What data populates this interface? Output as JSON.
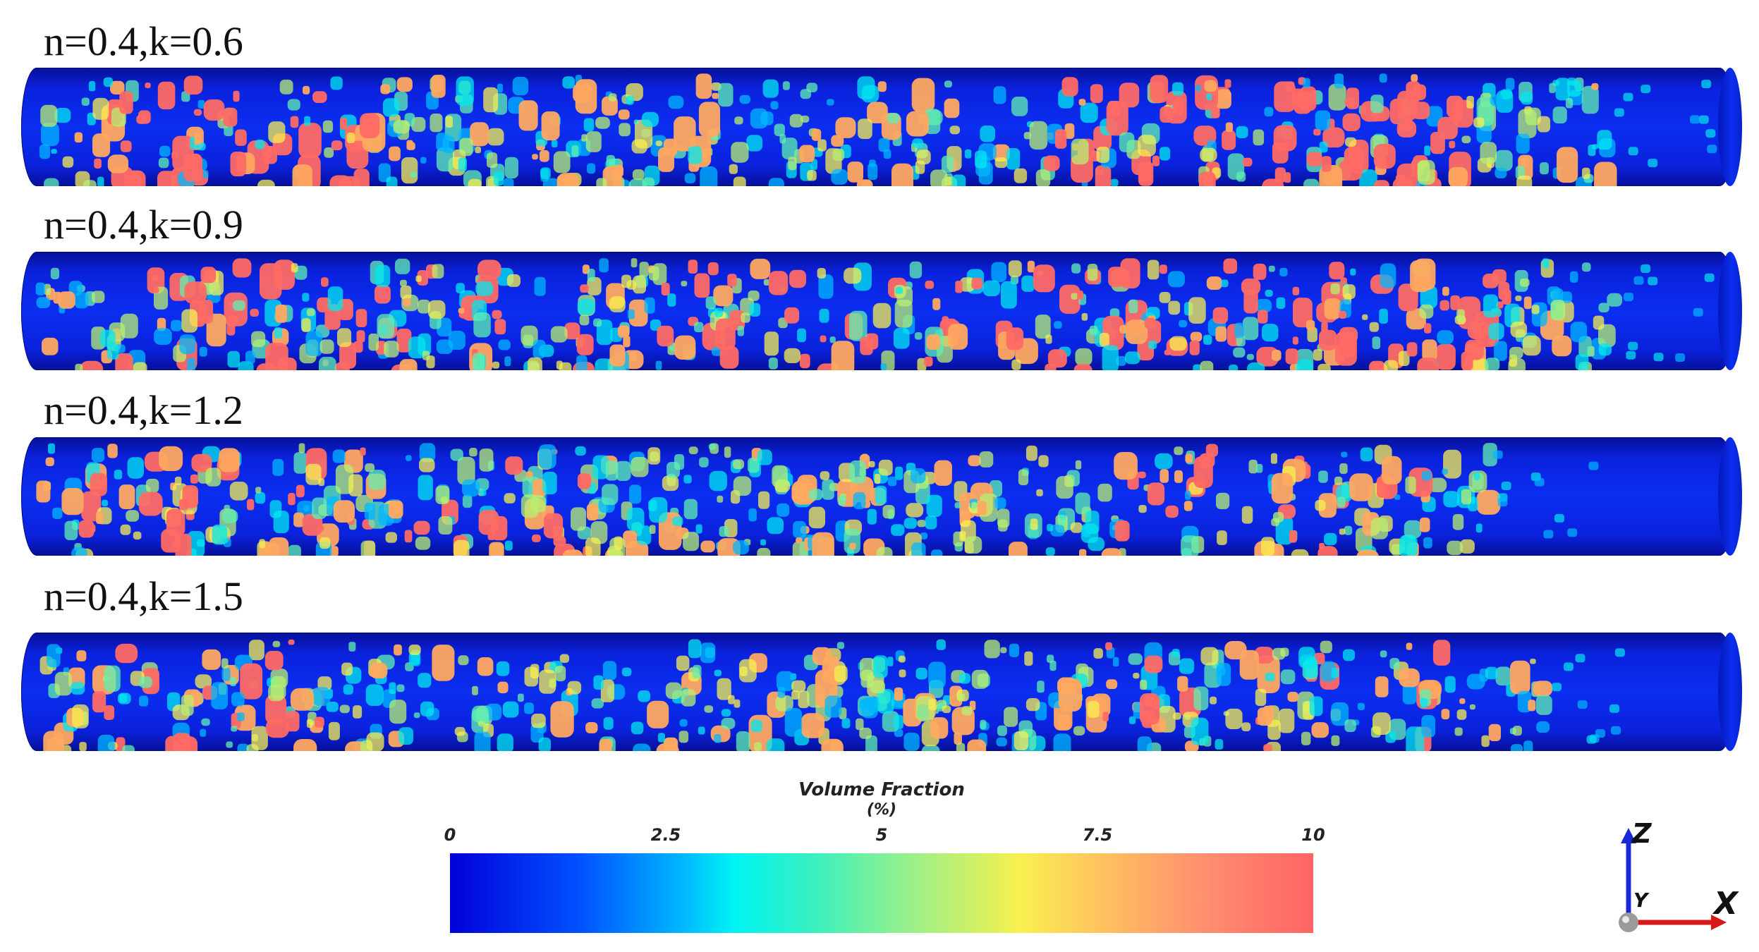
{
  "panels": [
    {
      "label": "n=0.4,k=0.6"
    },
    {
      "label": "n=0.4,k=0.9"
    },
    {
      "label": "n=0.4,k=1.2"
    },
    {
      "label": "n=0.4,k=1.5"
    }
  ],
  "colorbar": {
    "title": "Volume Fraction",
    "unit": "(%)",
    "ticks": [
      "0",
      "2.5",
      "5",
      "7.5",
      "10"
    ],
    "range": [
      0,
      10
    ],
    "colors": [
      "#0000d8",
      "#00b8ff",
      "#00f4f4",
      "#90f090",
      "#f8f050",
      "#ffc060",
      "#ff6464"
    ]
  },
  "axes": {
    "z": "Z",
    "y": "Y",
    "x": "X",
    "z_color": "#1a28d8",
    "x_color": "#d81818"
  }
}
